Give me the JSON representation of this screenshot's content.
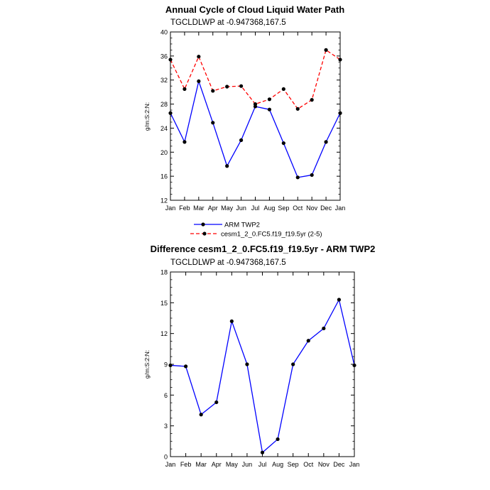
{
  "chart_data": [
    {
      "type": "line",
      "title": "Annual Cycle of Cloud Liquid Water Path",
      "subtitle": "TGCLDLWP at -0.947368,167.5",
      "xlabel": "",
      "ylabel": "g/m:S:2:N:",
      "categories": [
        "Jan",
        "Feb",
        "Mar",
        "Apr",
        "May",
        "Jun",
        "Jul",
        "Aug",
        "Sep",
        "Oct",
        "Nov",
        "Dec",
        "Jan"
      ],
      "ylim": [
        12,
        40
      ],
      "yticks": [
        12,
        16,
        20,
        24,
        28,
        32,
        36,
        40
      ],
      "legend_position": "bottom",
      "series": [
        {
          "name": "ARM TWP2",
          "color": "#0000ff",
          "dash": "solid",
          "values": [
            26.5,
            21.7,
            31.8,
            24.9,
            17.7,
            22.0,
            27.6,
            27.1,
            21.5,
            15.8,
            16.2,
            21.7,
            26.5
          ]
        },
        {
          "name": "cesm1_2_0.FC5.f19_f19.5yr (2-5)",
          "color": "#ff0000",
          "dash": "dashed",
          "values": [
            35.4,
            30.5,
            35.9,
            30.2,
            30.9,
            31.0,
            28.0,
            28.8,
            30.5,
            27.2,
            28.7,
            37.0,
            35.4
          ]
        }
      ]
    },
    {
      "type": "line",
      "title": "Difference cesm1_2_0.FC5.f19_f19.5yr - ARM TWP2",
      "subtitle": "TGCLDLWP at -0.947368,167.5",
      "xlabel": "",
      "ylabel": "g/m:S:2:N:",
      "categories": [
        "Jan",
        "Feb",
        "Mar",
        "Apr",
        "May",
        "Jun",
        "Jul",
        "Aug",
        "Sep",
        "Oct",
        "Nov",
        "Dec",
        "Jan"
      ],
      "ylim": [
        0,
        18
      ],
      "yticks": [
        0,
        3,
        6,
        9,
        12,
        15,
        18
      ],
      "series": [
        {
          "name": "Difference",
          "color": "#0000ff",
          "dash": "solid",
          "values": [
            8.9,
            8.8,
            4.1,
            5.3,
            13.2,
            9.0,
            0.4,
            1.7,
            9.0,
            11.3,
            12.5,
            15.3,
            8.9
          ]
        }
      ]
    }
  ]
}
